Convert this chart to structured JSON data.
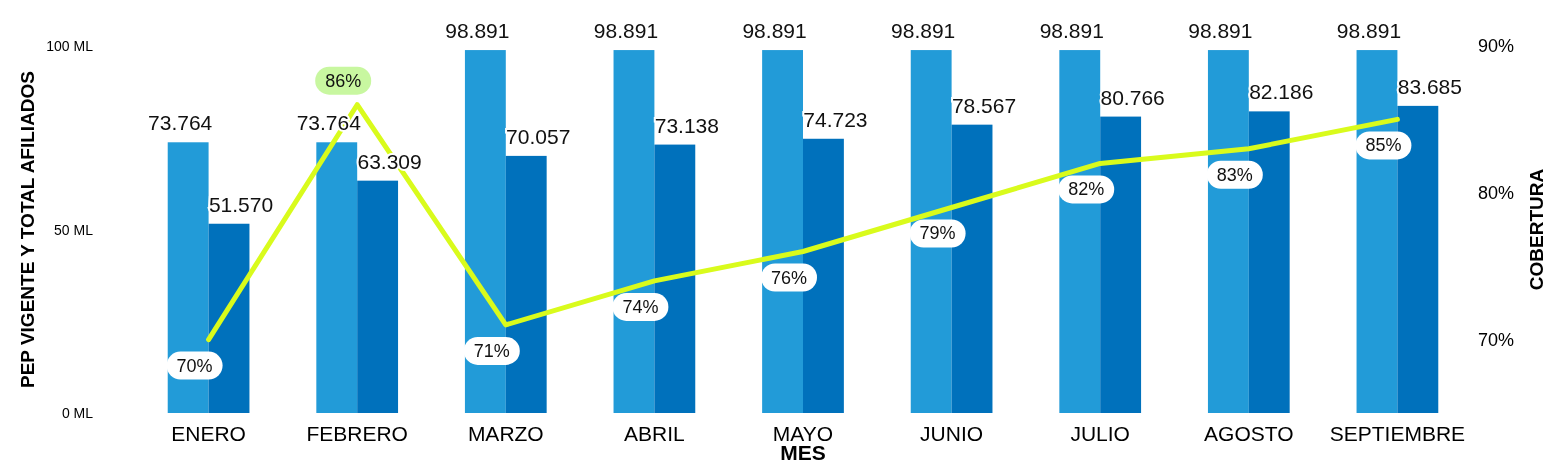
{
  "chart_data": {
    "type": "bar",
    "xlabel": "MES",
    "ylabel": "PEP VIGENTE Y TOTAL AFILIADOS",
    "y2label": "COBERTURA",
    "categories": [
      "ENERO",
      "FEBRERO",
      "MARZO",
      "ABRIL",
      "MAYO",
      "JUNIO",
      "JULIO",
      "AGOSTO",
      "SEPTIEMBRE"
    ],
    "series": [
      {
        "color": "#229bd8",
        "values": [
          73.764,
          73.764,
          98.891,
          98.891,
          98.891,
          98.891,
          98.891,
          98.891,
          98.891
        ],
        "value_labels": [
          "73.764",
          "73.764",
          "98.891",
          "98.891",
          "98.891",
          "98.891",
          "98.891",
          "98.891",
          "98.891"
        ]
      },
      {
        "color": "#0071bc",
        "values": [
          51.57,
          63.309,
          70.057,
          73.138,
          74.723,
          78.567,
          80.766,
          82.186,
          83.685
        ],
        "value_labels": [
          "51.570",
          "63.309",
          "70.057",
          "73.138",
          "74.723",
          "78.567",
          "80.766",
          "82.186",
          "83.685"
        ]
      },
      {
        "type": "line",
        "axis": "y2",
        "color": "#d9fb1c",
        "values": [
          70,
          86,
          71,
          74,
          76,
          79,
          82,
          83,
          85
        ],
        "value_labels": [
          "70%",
          "86%",
          "71%",
          "74%",
          "76%",
          "79%",
          "82%",
          "83%",
          "85%"
        ]
      }
    ],
    "ylim": [
      0,
      100
    ],
    "yticks": [
      {
        "value": 0,
        "label": "0 ML"
      },
      {
        "value": 50,
        "label": "50 ML"
      },
      {
        "value": 100,
        "label": "100 ML"
      }
    ],
    "y2lim": [
      65,
      90
    ],
    "y2ticks": [
      {
        "value": 70,
        "label": "70%"
      },
      {
        "value": 80,
        "label": "80%"
      },
      {
        "value": 90,
        "label": "90%"
      }
    ],
    "grid": false,
    "legend": false,
    "marker": "none",
    "line_style": "solid"
  }
}
